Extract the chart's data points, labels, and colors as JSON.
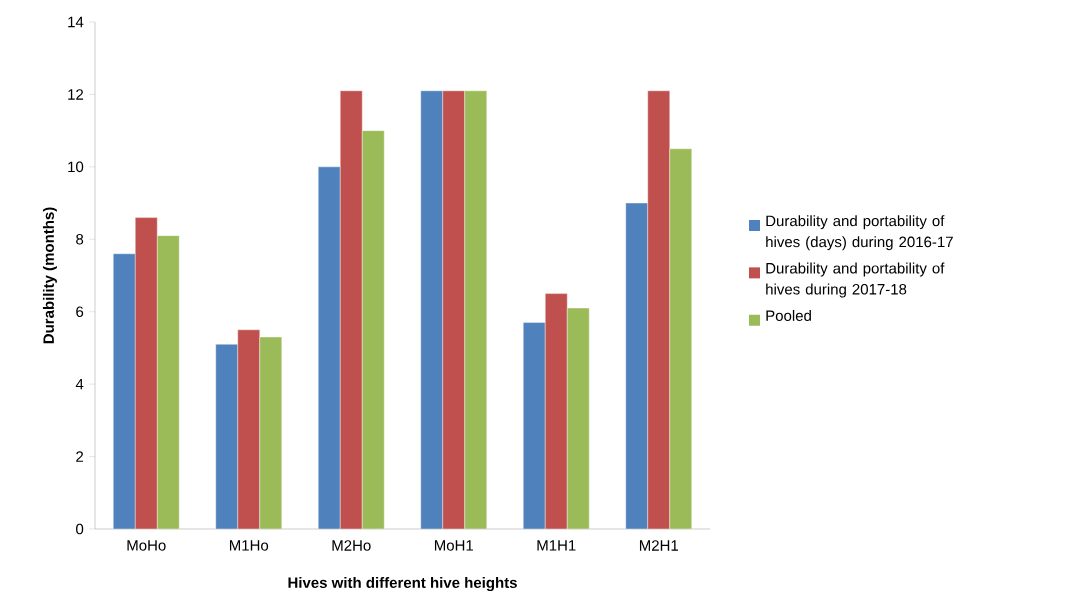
{
  "chart_data": {
    "type": "bar",
    "xlabel": "Hives with different hive heights",
    "ylabel": "Durability (months)",
    "categories": [
      "MoHo",
      "M1Ho",
      "M2Ho",
      "MoH1",
      "M1H1",
      "M2H1"
    ],
    "series": [
      {
        "name": "Durability and portability of hives (days) during 2016-17",
        "color": "#4f81bd",
        "values": [
          7.6,
          5.1,
          10.0,
          12.1,
          5.7,
          9.0
        ]
      },
      {
        "name": "Durability and portability of hives during 2017-18",
        "color": "#c0504d",
        "values": [
          8.6,
          5.5,
          12.1,
          12.1,
          6.5,
          12.1
        ]
      },
      {
        "name": "Pooled",
        "color": "#9bbb59",
        "values": [
          8.1,
          5.3,
          11.0,
          12.1,
          6.1,
          10.5
        ]
      }
    ],
    "ylim": [
      0,
      14
    ],
    "yticks": [
      0,
      2,
      4,
      6,
      8,
      10,
      12,
      14
    ],
    "legend": "right",
    "grid": false
  }
}
